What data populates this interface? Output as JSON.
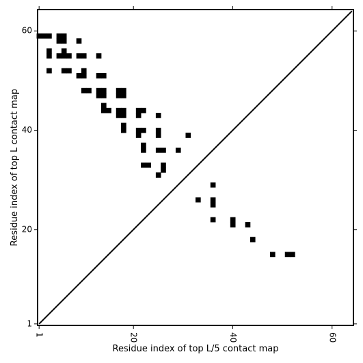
{
  "chart_data": {
    "type": "heatmap",
    "title": "",
    "xlabel": "Residue index of top L/5 contact map",
    "ylabel": "Residue index of top L contact map",
    "xlim": [
      0.7,
      64.3
    ],
    "ylim": [
      0.7,
      64.3
    ],
    "xticks": [
      {
        "value": 1,
        "label": "1",
        "rotate": true
      },
      {
        "value": 20,
        "label": "20",
        "rotate": true
      },
      {
        "value": 40,
        "label": "40",
        "rotate": true
      },
      {
        "value": 60,
        "label": "60",
        "rotate": true
      }
    ],
    "yticks": [
      {
        "value": 1,
        "label": "1"
      },
      {
        "value": 20,
        "label": "20"
      },
      {
        "value": 40,
        "label": "40"
      },
      {
        "value": 60,
        "label": "60"
      }
    ],
    "grid": false,
    "diagonal": {
      "from": [
        1,
        1
      ],
      "to": [
        64,
        64
      ],
      "color": "#000000"
    },
    "cell_color": "#000000",
    "upper_cells": [
      [
        1,
        59
      ],
      [
        2,
        59
      ],
      [
        3,
        59
      ],
      [
        5,
        59
      ],
      [
        6,
        59
      ],
      [
        5,
        58
      ],
      [
        6,
        58
      ],
      [
        9,
        58
      ],
      [
        3,
        56
      ],
      [
        3,
        55
      ],
      [
        6,
        56
      ],
      [
        5,
        55
      ],
      [
        6,
        55
      ],
      [
        7,
        55
      ],
      [
        9,
        55
      ],
      [
        10,
        55
      ],
      [
        13,
        55
      ],
      [
        3,
        52
      ],
      [
        6,
        52
      ],
      [
        7,
        52
      ],
      [
        10,
        52
      ],
      [
        9,
        51
      ],
      [
        10,
        51
      ],
      [
        13,
        51
      ],
      [
        14,
        51
      ],
      [
        10,
        48
      ],
      [
        11,
        48
      ],
      [
        13,
        48
      ],
      [
        14,
        48
      ],
      [
        13,
        47
      ],
      [
        14,
        47
      ],
      [
        17,
        48
      ],
      [
        18,
        48
      ],
      [
        17,
        47
      ],
      [
        18,
        47
      ],
      [
        14,
        45
      ],
      [
        14,
        44
      ],
      [
        15,
        44
      ],
      [
        17,
        44
      ],
      [
        18,
        44
      ],
      [
        17,
        43
      ],
      [
        18,
        43
      ],
      [
        18,
        41
      ],
      [
        18,
        40
      ],
      [
        21,
        44
      ],
      [
        22,
        44
      ],
      [
        21,
        43
      ],
      [
        25,
        43
      ],
      [
        21,
        40
      ],
      [
        22,
        40
      ],
      [
        21,
        39
      ],
      [
        25,
        40
      ],
      [
        25,
        39
      ],
      [
        31,
        39
      ],
      [
        22,
        37
      ],
      [
        22,
        36
      ],
      [
        25,
        36
      ],
      [
        26,
        36
      ],
      [
        29,
        36
      ],
      [
        22,
        33
      ],
      [
        23,
        33
      ],
      [
        26,
        33
      ],
      [
        26,
        32
      ],
      [
        25,
        31
      ]
    ],
    "lower_cells": [
      [
        36,
        29
      ],
      [
        33,
        26
      ],
      [
        36,
        26
      ],
      [
        36,
        25
      ],
      [
        36,
        22
      ],
      [
        40,
        22
      ],
      [
        40,
        21
      ],
      [
        43,
        21
      ],
      [
        44,
        18
      ],
      [
        48,
        15
      ],
      [
        51,
        15
      ],
      [
        52,
        15
      ]
    ]
  }
}
